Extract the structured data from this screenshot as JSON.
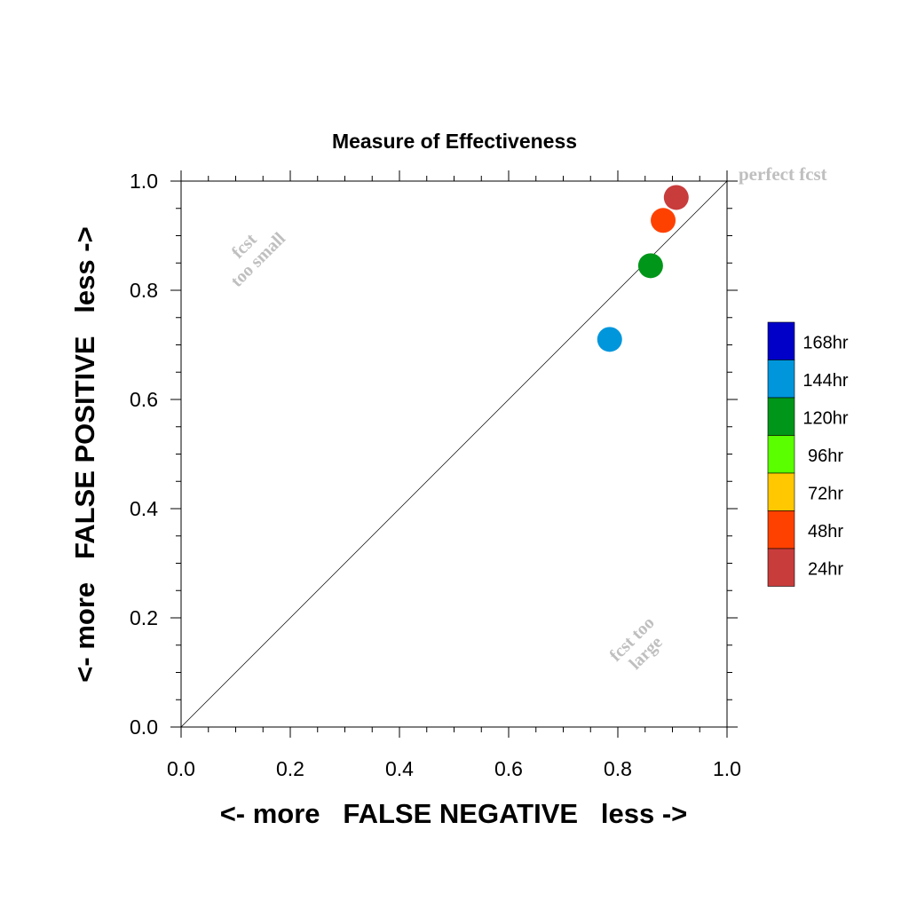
{
  "chart_data": {
    "type": "scatter",
    "title": "Measure of Effectiveness",
    "xlabel": "<- more   FALSE NEGATIVE   less ->",
    "ylabel": "<- more   FALSE POSITIVE   less ->",
    "xlim": [
      0.0,
      1.0
    ],
    "ylim": [
      0.0,
      1.0
    ],
    "x_ticks": [
      "0.0",
      "0.2",
      "0.4",
      "0.6",
      "0.8",
      "1.0"
    ],
    "y_ticks": [
      "0.0",
      "0.2",
      "0.4",
      "0.6",
      "0.8",
      "1.0"
    ],
    "grid": false,
    "diagonal_line": true,
    "annotations": {
      "perfect": "perfect fcst",
      "too_small_1": "fcst",
      "too_small_2": "too small",
      "too_large_1": "fcst too",
      "too_large_2": "large"
    },
    "legend_position": "right",
    "legend": [
      {
        "label": "168hr",
        "color": "#0000c8"
      },
      {
        "label": "144hr",
        "color": "#0096dc"
      },
      {
        "label": "120hr",
        "color": "#009619"
      },
      {
        "label": "96hr",
        "color": "#5aff00"
      },
      {
        "label": "72hr",
        "color": "#ffc800"
      },
      {
        "label": "48hr",
        "color": "#ff4100"
      },
      {
        "label": "24hr",
        "color": "#c83c3c"
      }
    ],
    "points": [
      {
        "series": "144hr",
        "x": 0.785,
        "y": 0.71,
        "color": "#0096dc"
      },
      {
        "series": "120hr",
        "x": 0.86,
        "y": 0.845,
        "color": "#009619"
      },
      {
        "series": "48hr",
        "x": 0.883,
        "y": 0.928,
        "color": "#ff4100"
      },
      {
        "series": "24hr",
        "x": 0.907,
        "y": 0.97,
        "color": "#c83c3c"
      }
    ]
  }
}
